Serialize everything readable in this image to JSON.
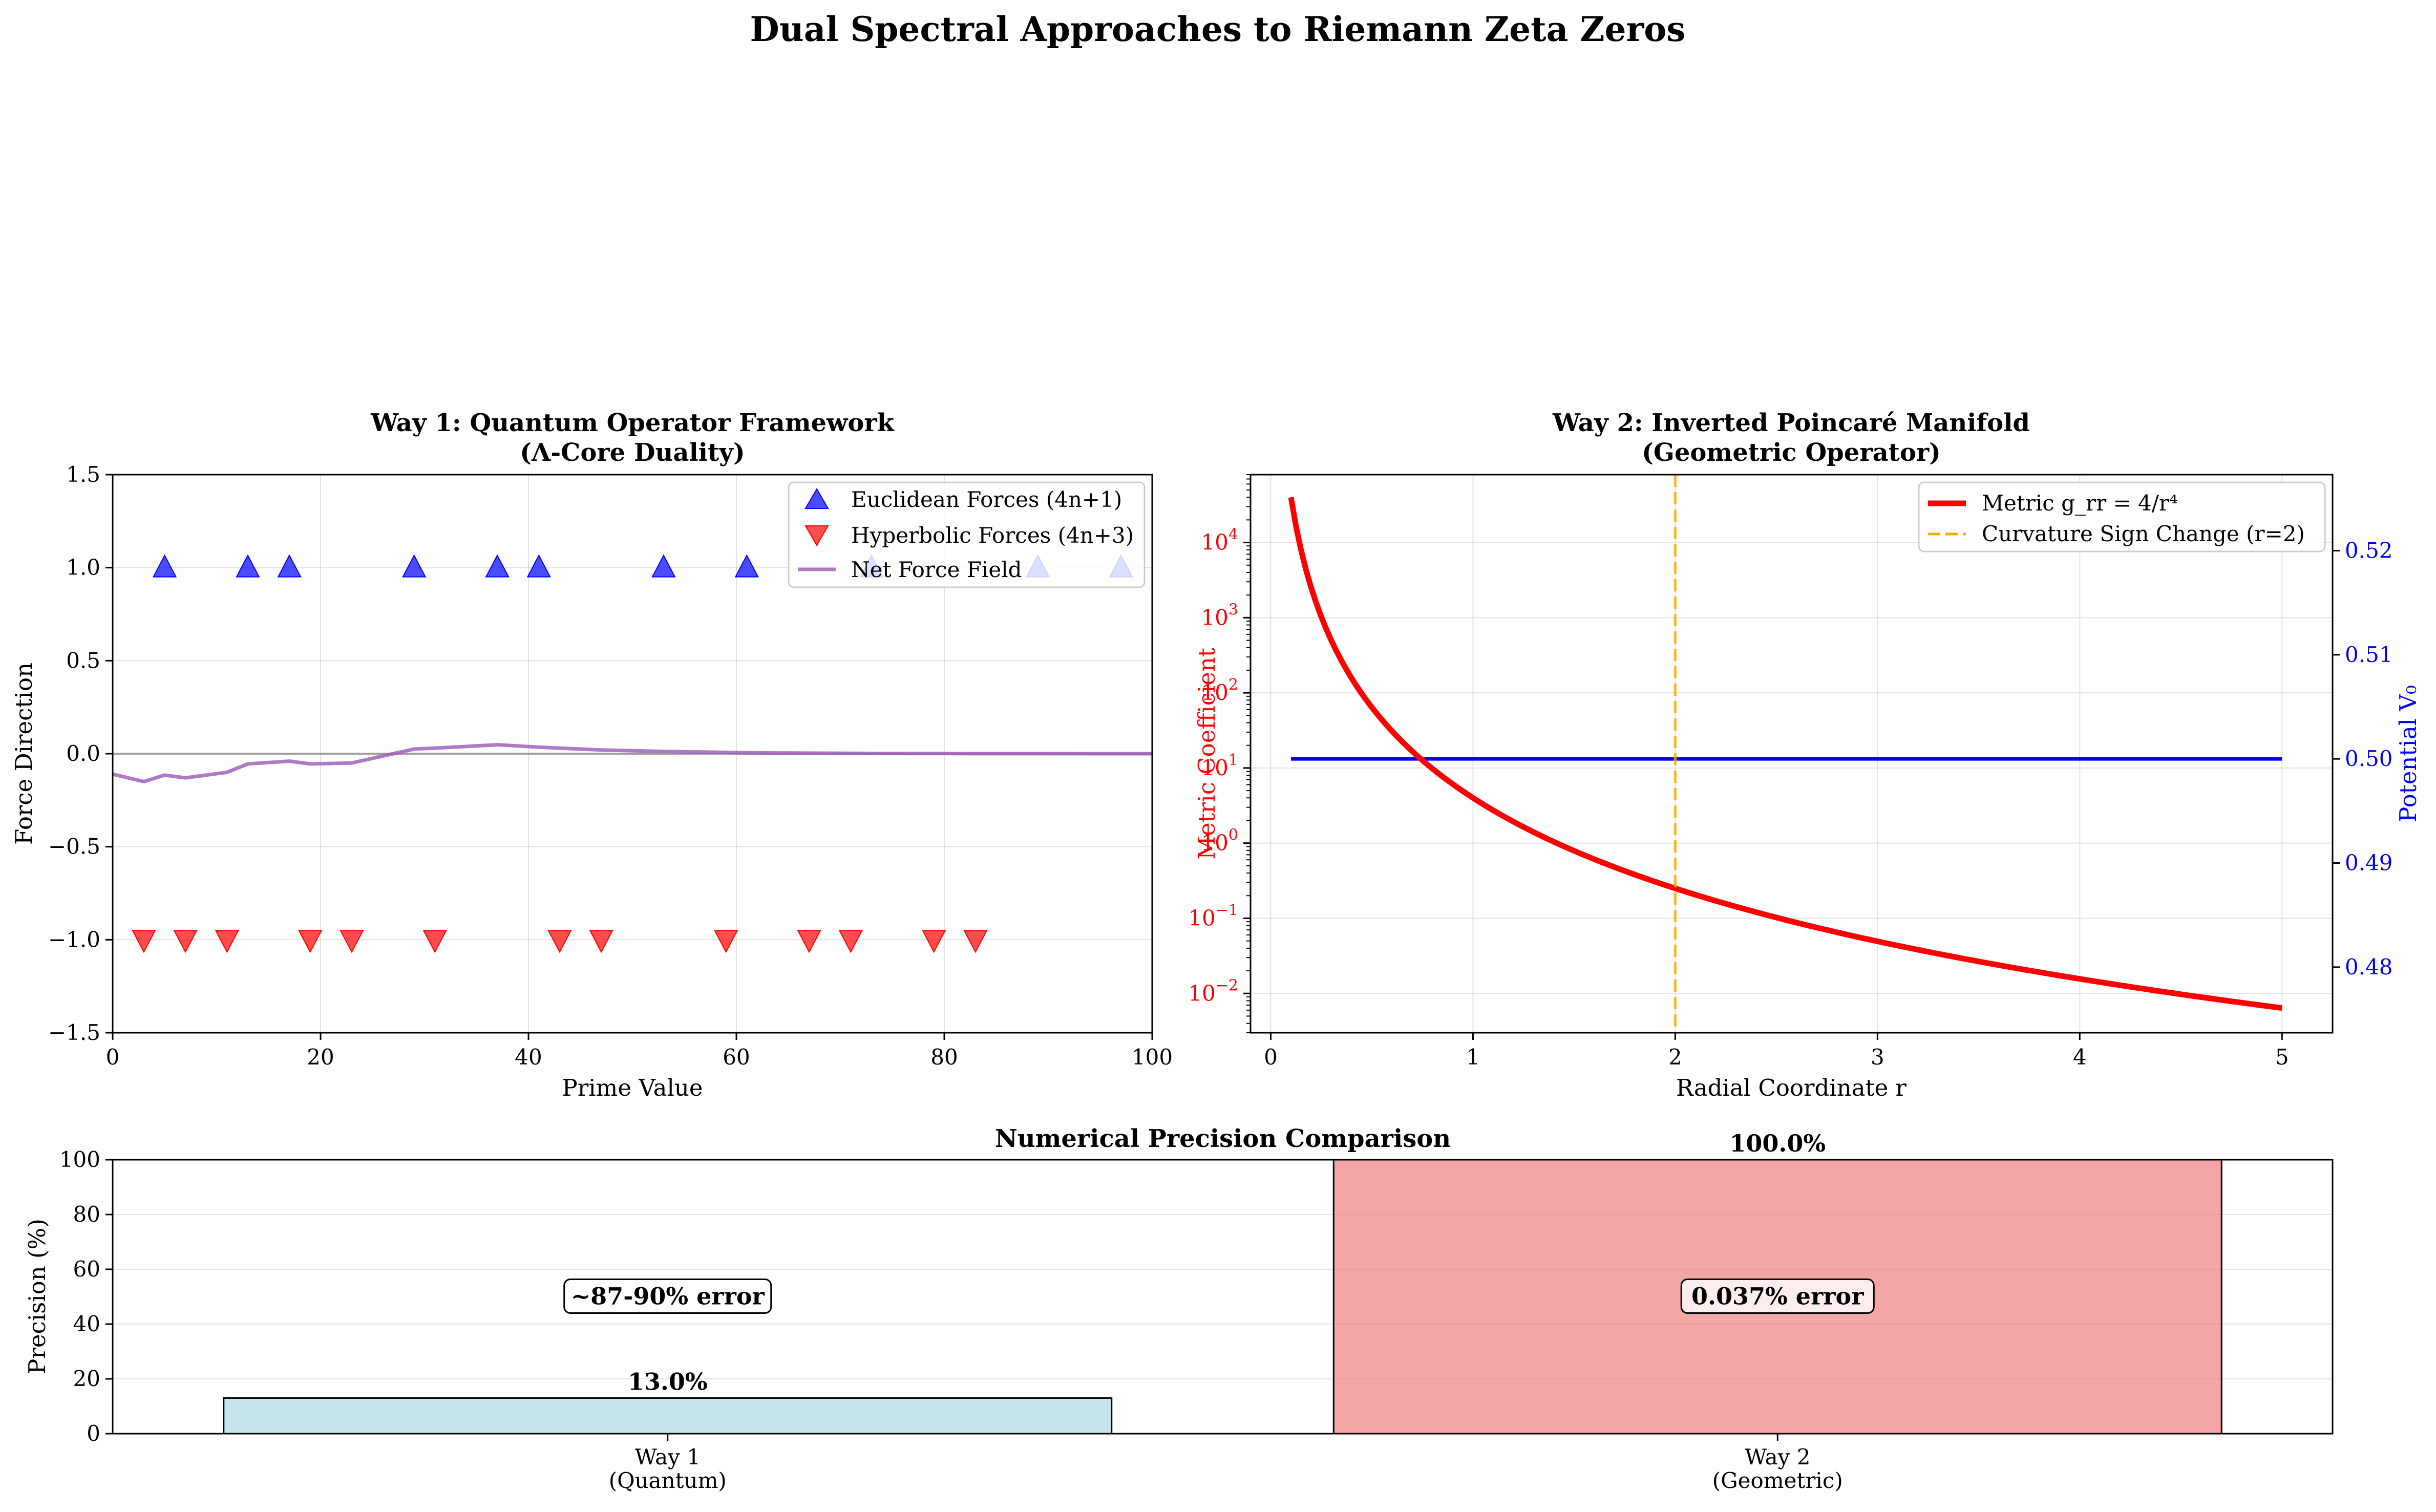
{
  "figure": {
    "suptitle": "Dual Spectral Approaches to Riemann Zeta Zeros"
  },
  "chart_data": [
    {
      "type": "scatter",
      "title": "Way 1: Quantum Operator Framework",
      "subtitle": "(Λ-Core Duality)",
      "xlabel": "Prime Value",
      "ylabel": "Force Direction",
      "xlim": [
        0,
        100
      ],
      "ylim": [
        -1.5,
        1.5
      ],
      "xticks": [
        "0",
        "20",
        "40",
        "60",
        "80",
        "100"
      ],
      "yticks": [
        "1.5",
        "1.0",
        "0.5",
        "0.0",
        "−0.5",
        "−1.0",
        "−1.5"
      ],
      "grid": true,
      "legend_position": "top-right",
      "series": [
        {
          "name": "Euclidean Forces (4n+1)",
          "marker": "triangle-up",
          "color": "#0000ff",
          "x": [
            5,
            13,
            17,
            29,
            37,
            41,
            53,
            61,
            73,
            89,
            97
          ],
          "y": [
            1,
            1,
            1,
            1,
            1,
            1,
            1,
            1,
            1,
            1,
            1
          ]
        },
        {
          "name": "Hyperbolic Forces (4n+3)",
          "marker": "triangle-down",
          "color": "#ff0000",
          "x": [
            3,
            7,
            11,
            19,
            23,
            31,
            43,
            47,
            59,
            67,
            71,
            79,
            83
          ],
          "y": [
            -1,
            -1,
            -1,
            -1,
            -1,
            -1,
            -1,
            -1,
            -1,
            -1,
            -1,
            -1,
            -1
          ]
        },
        {
          "name": "Net Force Field",
          "type": "line",
          "color": "#9b59b6",
          "x": [
            0,
            3,
            5,
            7,
            11,
            13,
            17,
            19,
            23,
            29,
            31,
            37,
            41,
            43,
            47,
            53,
            59,
            61,
            67,
            71,
            73,
            79,
            83,
            89,
            97,
            100
          ],
          "y": [
            -0.11,
            -0.15,
            -0.115,
            -0.13,
            -0.1,
            -0.055,
            -0.04,
            -0.055,
            -0.05,
            0.025,
            0.03,
            0.048,
            0.035,
            0.03,
            0.02,
            0.012,
            0.007,
            0.005,
            0.003,
            0.002,
            0.0015,
            0.001,
            0.0005,
            0.0002,
            0.0001,
            0.0
          ]
        }
      ],
      "reference_line": {
        "y": 0,
        "color": "#808080"
      }
    },
    {
      "type": "line",
      "title": "Way 2: Inverted Poincaré Manifold",
      "subtitle": "(Geometric Operator)",
      "xlabel": "Radial Coordinate r",
      "ylabel": "Metric Coefficient",
      "ylabel_right": "Potential V₀",
      "xlim": [
        -0.1,
        5.25
      ],
      "ylim_log": [
        0.003,
        80000
      ],
      "ylim_right": [
        0.4737,
        0.5273
      ],
      "yscale": "log",
      "xticks": [
        "0",
        "1",
        "2",
        "3",
        "4",
        "5"
      ],
      "yticks_log": [
        {
          "base": "10",
          "exp": "4",
          "value": 10000
        },
        {
          "base": "10",
          "exp": "3",
          "value": 1000
        },
        {
          "base": "10",
          "exp": "2",
          "value": 100
        },
        {
          "base": "10",
          "exp": "1",
          "value": 10
        },
        {
          "base": "10",
          "exp": "0",
          "value": 1
        },
        {
          "base": "10",
          "exp": "−1",
          "value": 0.1
        },
        {
          "base": "10",
          "exp": "−2",
          "value": 0.01
        }
      ],
      "yticks_right": [
        "0.52",
        "0.51",
        "0.50",
        "0.49",
        "0.48"
      ],
      "grid": true,
      "legend_position": "top-right",
      "series": [
        {
          "name": "Metric g_rr = 4/r⁴",
          "color": "#ff0000",
          "formula": "4/r^4",
          "x_range": [
            0.1,
            5.0
          ]
        },
        {
          "name": "",
          "color": "#0000ff",
          "axis": "right",
          "x": [
            0.1,
            5.0
          ],
          "y": [
            0.5,
            0.5
          ]
        }
      ],
      "vline": {
        "x": 2,
        "name": "Curvature Sign Change (r=2)",
        "color": "#ffa500",
        "style": "dashed"
      }
    },
    {
      "type": "bar",
      "title": "Numerical Precision Comparison",
      "ylabel": "Precision (%)",
      "ylim": [
        0,
        100
      ],
      "yticks": [
        "0",
        "20",
        "40",
        "60",
        "80",
        "100"
      ],
      "grid": true,
      "categories": [
        {
          "line1": "Way 1",
          "line2": "(Quantum)"
        },
        {
          "line1": "Way 2",
          "line2": "(Geometric)"
        }
      ],
      "values": [
        13.0,
        100.0
      ],
      "value_labels": [
        "13.0%",
        "100.0%"
      ],
      "colors": [
        "#add8e6",
        "#f08080"
      ],
      "annotations": [
        {
          "text": "~87-90% error",
          "y": 50
        },
        {
          "text": "0.037% error",
          "y": 50
        }
      ]
    }
  ]
}
